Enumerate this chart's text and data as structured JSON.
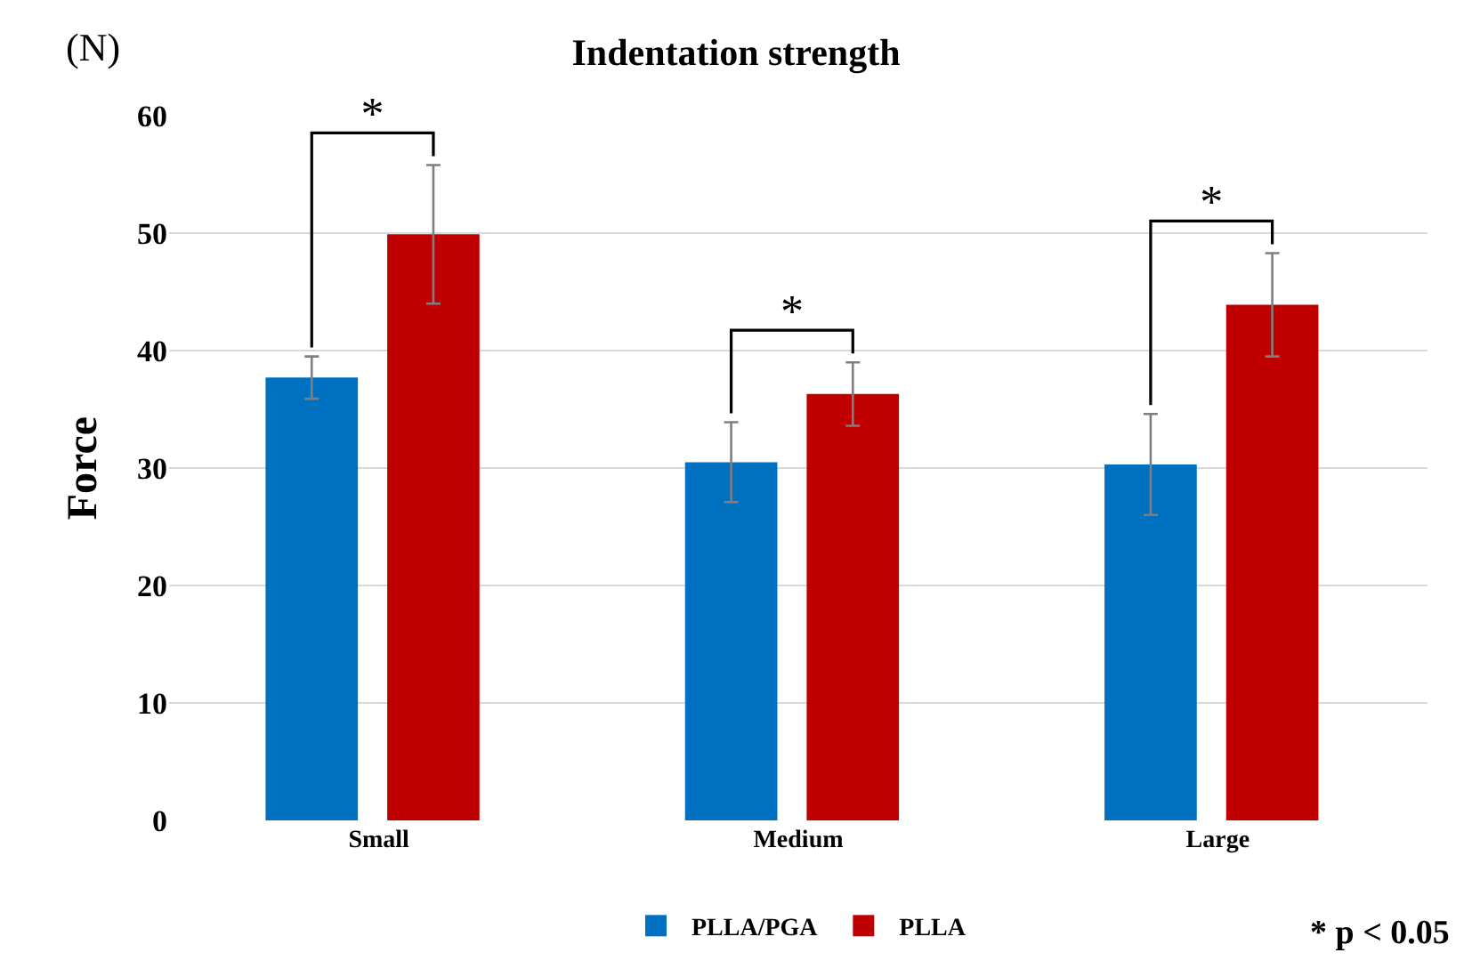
{
  "chart_data": {
    "type": "bar",
    "title": "Indentation strength",
    "ylabel": "Force",
    "categories": [
      "Small",
      "Medium",
      "Large"
    ],
    "series": [
      {
        "name": "PLLA/PGA",
        "color": "#0070c0",
        "values": [
          37.7,
          30.5,
          30.3
        ],
        "errors": [
          1.8,
          3.4,
          4.3
        ]
      },
      {
        "name": "PLLA",
        "color": "#c00000",
        "values": [
          49.9,
          36.3,
          43.9
        ],
        "errors": [
          5.9,
          2.7,
          4.4
        ]
      }
    ],
    "ylim": [
      0,
      60
    ],
    "yticks": [
      0,
      10,
      20,
      30,
      40,
      50,
      60
    ],
    "grid": "y",
    "legend": "bottom",
    "annotations": [
      "(N)",
      "*",
      "*",
      "*",
      "* p < 0.05"
    ]
  }
}
